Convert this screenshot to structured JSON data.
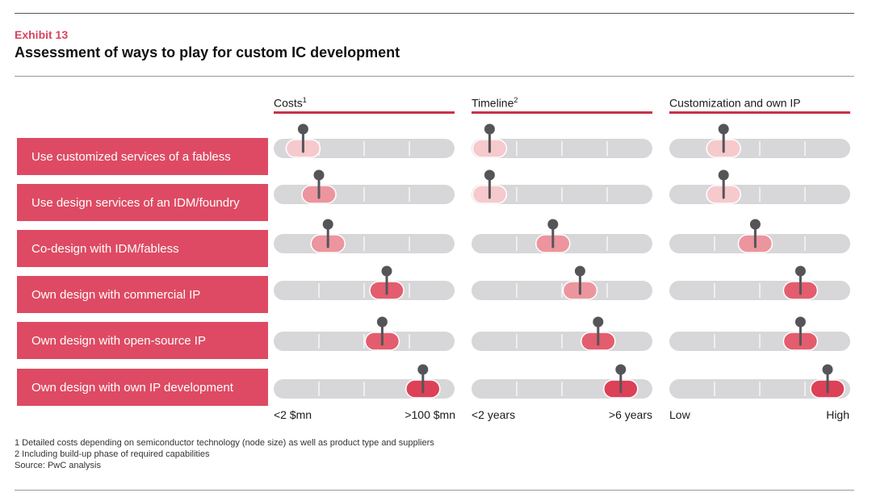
{
  "exhibit": {
    "label": "Exhibit  13",
    "title": "Assessment of ways to play for custom IC development"
  },
  "colors": {
    "accent": "#de4a63",
    "column_rule": "#c8324a",
    "track": "#d7d7d9",
    "pin": "#555559",
    "marker_levels": [
      "#f6c9cd",
      "#f2b6bb",
      "#ec959e",
      "#e87a85",
      "#e35d6e",
      "#dc4157"
    ]
  },
  "chart_data": {
    "type": "table",
    "scale": [
      0,
      4
    ],
    "rows": [
      "Use customized services of a fabless",
      "Use design services of an IDM/foundry",
      "Co-design with IDM/fabless",
      "Own design with commercial IP",
      "Own design with open-source IP",
      "Own design with own IP development"
    ],
    "columns": [
      {
        "title": "Costs",
        "footnote": "1",
        "low_label": "<2 $mn",
        "high_label": ">100 $mn",
        "values": [
          0.65,
          1.0,
          1.2,
          2.5,
          2.4,
          3.3
        ],
        "intensity": [
          0,
          2,
          2,
          4,
          4,
          5
        ]
      },
      {
        "title": "Timeline",
        "footnote": "2",
        "low_label": "<2 years",
        "high_label": ">6 years",
        "values": [
          0.4,
          0.4,
          1.8,
          2.4,
          2.8,
          3.3
        ],
        "intensity": [
          0,
          0,
          2,
          2,
          4,
          5
        ]
      },
      {
        "title": "Customization and own IP",
        "footnote": "",
        "low_label": "Low",
        "high_label": "High",
        "values": [
          1.2,
          1.2,
          1.9,
          2.9,
          2.9,
          3.5
        ],
        "intensity": [
          0,
          0,
          2,
          4,
          4,
          5
        ]
      }
    ]
  },
  "footnotes": [
    "1 Detailed costs depending on semiconductor technology (node size) as well as product type and suppliers",
    "2 Including build-up phase of required capabilities",
    "Source: PwC analysis"
  ]
}
